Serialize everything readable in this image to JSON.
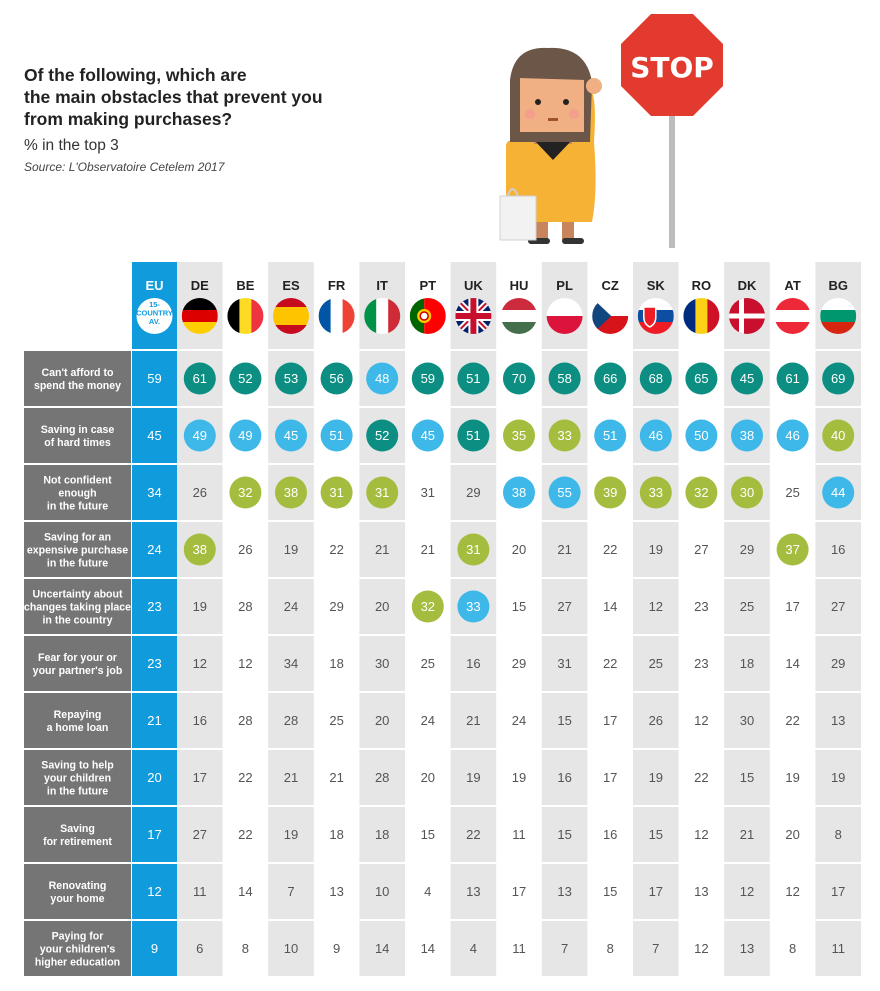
{
  "header": {
    "title_lines": [
      "Of the following, which are",
      "the main obstacles that prevent you",
      "from making purchases?"
    ],
    "subtitle": "% in the top 3",
    "source": "Source: L'Observatoire Cetelem 2017"
  },
  "illustration": {
    "sign_text": "STOP",
    "icons": [
      "woman-icon",
      "stop-sign-icon",
      "shopping-bag-icon"
    ]
  },
  "colors": {
    "eu_blue": "#0f9bdc",
    "row_label_bg": "#757575",
    "light_blue": "#3db8e8",
    "teal": "#0c8f82",
    "green": "#a4bd3e",
    "shade": "#e6e6e6",
    "plain_text": "#555555"
  },
  "chart_data": {
    "type": "table",
    "title": "Of the following, which are the main obstacles that prevent you from making purchases?",
    "subtitle": "% in the top 3",
    "source": "Source: L'Observatoire Cetelem 2017",
    "eu": {
      "code": "EU",
      "sublabel_lines": [
        "15-",
        "COUNTRY",
        "AV."
      ],
      "values": [
        59,
        45,
        34,
        24,
        23,
        23,
        21,
        20,
        17,
        12,
        9
      ]
    },
    "countries": [
      {
        "code": "DE",
        "flag": "germany-flag-icon"
      },
      {
        "code": "BE",
        "flag": "belgium-flag-icon"
      },
      {
        "code": "ES",
        "flag": "spain-flag-icon"
      },
      {
        "code": "FR",
        "flag": "france-flag-icon"
      },
      {
        "code": "IT",
        "flag": "italy-flag-icon"
      },
      {
        "code": "PT",
        "flag": "portugal-flag-icon"
      },
      {
        "code": "UK",
        "flag": "uk-flag-icon"
      },
      {
        "code": "HU",
        "flag": "hungary-flag-icon"
      },
      {
        "code": "PL",
        "flag": "poland-flag-icon"
      },
      {
        "code": "CZ",
        "flag": "czech-flag-icon"
      },
      {
        "code": "SK",
        "flag": "slovakia-flag-icon"
      },
      {
        "code": "RO",
        "flag": "romania-flag-icon"
      },
      {
        "code": "DK",
        "flag": "denmark-flag-icon"
      },
      {
        "code": "AT",
        "flag": "austria-flag-icon"
      },
      {
        "code": "BG",
        "flag": "bulgaria-flag-icon"
      }
    ],
    "rows": [
      {
        "label_lines": [
          "Can't afford to",
          "spend the money"
        ],
        "values": [
          61,
          52,
          53,
          56,
          48,
          59,
          51,
          70,
          58,
          66,
          68,
          65,
          45,
          61,
          69
        ],
        "rank": [
          1,
          1,
          1,
          1,
          2,
          1,
          1,
          1,
          1,
          1,
          1,
          1,
          1,
          1,
          1
        ]
      },
      {
        "label_lines": [
          "Saving in case",
          "of hard times"
        ],
        "values": [
          49,
          49,
          45,
          51,
          52,
          45,
          51,
          35,
          33,
          51,
          46,
          50,
          38,
          46,
          40
        ],
        "rank": [
          2,
          2,
          2,
          2,
          1,
          2,
          1,
          3,
          3,
          2,
          2,
          2,
          2,
          2,
          3
        ]
      },
      {
        "label_lines": [
          "Not confident",
          "enough",
          "in the future"
        ],
        "values": [
          26,
          32,
          38,
          31,
          31,
          31,
          29,
          38,
          55,
          39,
          33,
          32,
          30,
          25,
          44
        ],
        "rank": [
          0,
          3,
          3,
          3,
          3,
          0,
          0,
          2,
          2,
          3,
          3,
          3,
          3,
          0,
          2
        ]
      },
      {
        "label_lines": [
          "Saving for an",
          "expensive purchase",
          "in the future"
        ],
        "values": [
          38,
          26,
          19,
          22,
          21,
          21,
          31,
          20,
          21,
          22,
          19,
          27,
          29,
          37,
          16
        ],
        "rank": [
          3,
          0,
          0,
          0,
          0,
          0,
          3,
          0,
          0,
          0,
          0,
          0,
          0,
          3,
          0
        ]
      },
      {
        "label_lines": [
          "Uncertainty about",
          "changes taking place",
          "in the country"
        ],
        "values": [
          19,
          28,
          24,
          29,
          20,
          32,
          33,
          15,
          27,
          14,
          12,
          23,
          25,
          17,
          27
        ],
        "rank": [
          0,
          0,
          0,
          0,
          0,
          3,
          2,
          0,
          0,
          0,
          0,
          0,
          0,
          0,
          0
        ]
      },
      {
        "label_lines": [
          "Fear for your or",
          "your partner's job"
        ],
        "values": [
          12,
          12,
          34,
          18,
          30,
          25,
          16,
          29,
          31,
          22,
          25,
          23,
          18,
          14,
          29
        ],
        "rank": [
          0,
          0,
          0,
          0,
          0,
          0,
          0,
          0,
          0,
          0,
          0,
          0,
          0,
          0,
          0
        ]
      },
      {
        "label_lines": [
          "Repaying",
          "a home loan"
        ],
        "values": [
          16,
          28,
          28,
          25,
          20,
          24,
          21,
          24,
          15,
          17,
          26,
          12,
          30,
          22,
          13
        ],
        "rank": [
          0,
          0,
          0,
          0,
          0,
          0,
          0,
          0,
          0,
          0,
          0,
          0,
          0,
          0,
          0
        ]
      },
      {
        "label_lines": [
          "Saving to help",
          "your children",
          "in the future"
        ],
        "values": [
          17,
          22,
          21,
          21,
          28,
          20,
          19,
          19,
          16,
          17,
          19,
          22,
          15,
          19,
          19
        ],
        "rank": [
          0,
          0,
          0,
          0,
          0,
          0,
          0,
          0,
          0,
          0,
          0,
          0,
          0,
          0,
          0
        ]
      },
      {
        "label_lines": [
          "Saving",
          "for retirement"
        ],
        "values": [
          27,
          22,
          19,
          18,
          18,
          15,
          22,
          11,
          15,
          16,
          15,
          12,
          21,
          20,
          8
        ],
        "rank": [
          0,
          0,
          0,
          0,
          0,
          0,
          0,
          0,
          0,
          0,
          0,
          0,
          0,
          0,
          0
        ]
      },
      {
        "label_lines": [
          "Renovating",
          "your home"
        ],
        "values": [
          11,
          14,
          7,
          13,
          10,
          4,
          13,
          17,
          13,
          15,
          17,
          13,
          12,
          12,
          17
        ],
        "rank": [
          0,
          0,
          0,
          0,
          0,
          0,
          0,
          0,
          0,
          0,
          0,
          0,
          0,
          0,
          0
        ]
      },
      {
        "label_lines": [
          "Paying for",
          "your children's",
          "higher education"
        ],
        "values": [
          6,
          8,
          10,
          9,
          14,
          14,
          4,
          11,
          7,
          8,
          7,
          12,
          13,
          8,
          11
        ],
        "rank": [
          0,
          0,
          0,
          0,
          0,
          0,
          0,
          0,
          0,
          0,
          0,
          0,
          0,
          0,
          0
        ]
      }
    ]
  }
}
